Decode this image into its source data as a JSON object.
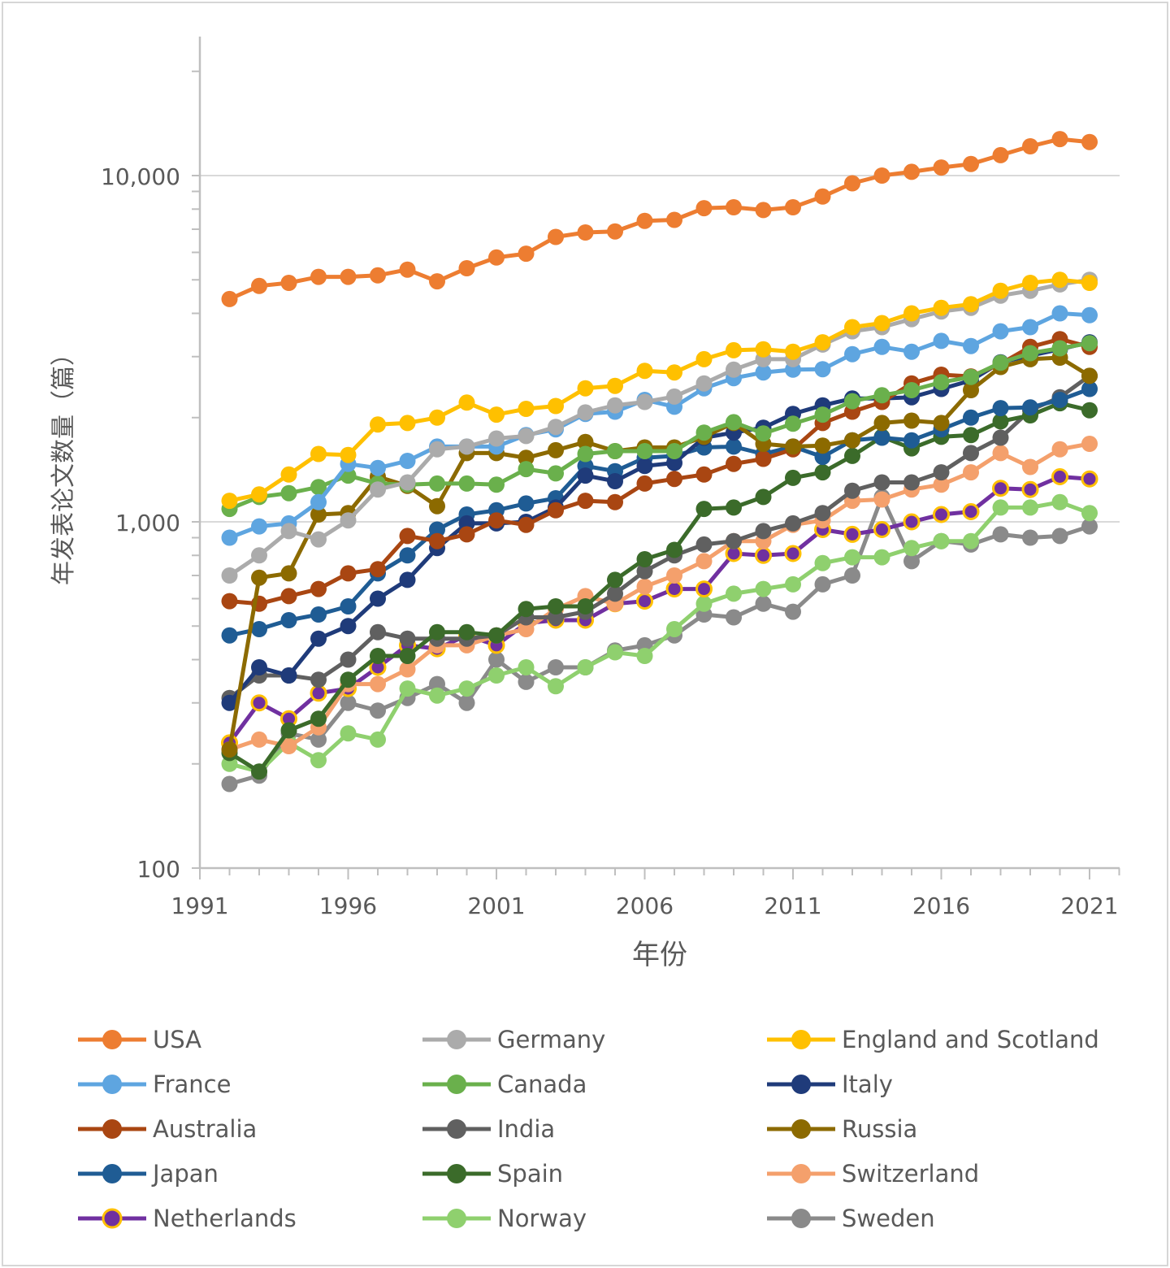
{
  "chart_data": {
    "type": "line",
    "xlabel": "年份",
    "ylabel": "年发表论文数量（篇）",
    "yscale": "log",
    "ylim": [
      100,
      20000
    ],
    "xlim": [
      1991,
      2022
    ],
    "x_ticks": [
      1991,
      1996,
      2001,
      2006,
      2011,
      2016,
      2021
    ],
    "y_ticks": [
      100,
      1000,
      10000
    ],
    "y_tick_labels": [
      "100",
      "1,000",
      "10,000"
    ],
    "grid": "horizontal major",
    "legend_position": "bottom",
    "x": [
      1992,
      1993,
      1994,
      1995,
      1996,
      1997,
      1998,
      1999,
      2000,
      2001,
      2002,
      2003,
      2004,
      2005,
      2006,
      2007,
      2008,
      2009,
      2010,
      2011,
      2012,
      2013,
      2014,
      2015,
      2016,
      2017,
      2018,
      2019,
      2020,
      2021
    ],
    "series": [
      {
        "name": "Sweden",
        "color": "#8a8a8a",
        "values": [
          175,
          185,
          245,
          235,
          300,
          285,
          310,
          340,
          300,
          400,
          345,
          380,
          380,
          425,
          440,
          470,
          540,
          530,
          580,
          550,
          660,
          700,
          1180,
          770,
          880,
          860,
          920,
          900,
          910,
          970
        ]
      },
      {
        "name": "Norway",
        "color": "#8fd06e",
        "values": [
          200,
          190,
          230,
          205,
          245,
          235,
          330,
          315,
          330,
          360,
          380,
          335,
          380,
          420,
          410,
          490,
          580,
          620,
          640,
          660,
          760,
          790,
          790,
          840,
          880,
          880,
          1100,
          1100,
          1140,
          1060
        ]
      },
      {
        "name": "Netherlands",
        "color": "#7030a0",
        "marker_edge": "#ffc000",
        "values": [
          230,
          300,
          270,
          320,
          330,
          380,
          440,
          430,
          470,
          440,
          510,
          520,
          520,
          580,
          590,
          640,
          640,
          810,
          800,
          810,
          950,
          920,
          950,
          1000,
          1050,
          1070,
          1250,
          1240,
          1350,
          1330
        ]
      },
      {
        "name": "Switzerland",
        "color": "#f4a06c",
        "values": [
          220,
          235,
          225,
          255,
          340,
          340,
          375,
          440,
          440,
          470,
          490,
          560,
          610,
          580,
          650,
          700,
          770,
          880,
          880,
          980,
          1010,
          1150,
          1160,
          1240,
          1280,
          1390,
          1580,
          1440,
          1620,
          1680
        ]
      },
      {
        "name": "India",
        "color": "#606060",
        "values": [
          310,
          360,
          360,
          350,
          400,
          480,
          460,
          460,
          460,
          470,
          530,
          530,
          550,
          620,
          720,
          800,
          860,
          880,
          940,
          990,
          1060,
          1230,
          1300,
          1300,
          1390,
          1580,
          1750,
          2100,
          2290,
          2640
        ]
      },
      {
        "name": "Spain",
        "color": "#3b6b2a",
        "values": [
          215,
          190,
          250,
          270,
          350,
          410,
          410,
          480,
          480,
          470,
          560,
          570,
          570,
          680,
          780,
          830,
          1090,
          1100,
          1180,
          1340,
          1390,
          1550,
          1760,
          1630,
          1760,
          1780,
          1950,
          2030,
          2200,
          2100
        ]
      },
      {
        "name": "Japan",
        "color": "#1f5c94",
        "values": [
          470,
          490,
          520,
          540,
          570,
          710,
          800,
          950,
          1050,
          1080,
          1130,
          1170,
          1450,
          1400,
          1530,
          1550,
          1640,
          1650,
          1570,
          1650,
          1540,
          1720,
          1750,
          1720,
          1850,
          2000,
          2130,
          2140,
          2250,
          2420
        ]
      },
      {
        "name": "Italy",
        "color": "#1f3b7a",
        "values": [
          300,
          380,
          360,
          460,
          500,
          600,
          680,
          840,
          990,
          990,
          1000,
          1100,
          1360,
          1310,
          1450,
          1480,
          1750,
          1810,
          1870,
          2050,
          2170,
          2270,
          2270,
          2290,
          2420,
          2560,
          2890,
          3020,
          3150,
          3300
        ]
      },
      {
        "name": "Australia",
        "color": "#a94612",
        "values": [
          590,
          580,
          610,
          640,
          710,
          730,
          910,
          880,
          920,
          1010,
          980,
          1080,
          1150,
          1140,
          1290,
          1330,
          1370,
          1470,
          1520,
          1620,
          1930,
          2080,
          2220,
          2510,
          2660,
          2630,
          2860,
          3200,
          3370,
          3200
        ]
      },
      {
        "name": "Russia",
        "color": "#8c6a00",
        "values": [
          220,
          690,
          710,
          1050,
          1060,
          1350,
          1270,
          1110,
          1580,
          1580,
          1530,
          1610,
          1700,
          1600,
          1640,
          1640,
          1760,
          1930,
          1680,
          1650,
          1660,
          1720,
          1930,
          1960,
          1930,
          2400,
          2800,
          2950,
          2980,
          2640
        ]
      },
      {
        "name": "Canada",
        "color": "#6ab04c",
        "values": [
          1090,
          1180,
          1210,
          1260,
          1360,
          1290,
          1280,
          1290,
          1290,
          1280,
          1420,
          1380,
          1570,
          1600,
          1600,
          1600,
          1810,
          1940,
          1800,
          1920,
          2040,
          2230,
          2320,
          2400,
          2530,
          2620,
          2880,
          3070,
          3170,
          3280
        ]
      },
      {
        "name": "France",
        "color": "#5ea5e0",
        "values": [
          900,
          970,
          990,
          1140,
          1470,
          1430,
          1500,
          1650,
          1650,
          1650,
          1780,
          1850,
          2050,
          2080,
          2250,
          2150,
          2430,
          2600,
          2700,
          2750,
          2760,
          3050,
          3200,
          3100,
          3330,
          3220,
          3550,
          3650,
          4000,
          3950
        ]
      },
      {
        "name": "Germany",
        "color": "#ababab",
        "values": [
          700,
          800,
          940,
          890,
          1010,
          1240,
          1300,
          1620,
          1650,
          1740,
          1770,
          1880,
          2070,
          2170,
          2220,
          2300,
          2510,
          2750,
          2950,
          2950,
          3250,
          3550,
          3650,
          3850,
          4050,
          4150,
          4500,
          4650,
          4850,
          5000
        ]
      },
      {
        "name": "England and Scotland",
        "color": "#ffc000",
        "values": [
          1150,
          1200,
          1370,
          1570,
          1560,
          1910,
          1930,
          2000,
          2210,
          2040,
          2120,
          2160,
          2430,
          2470,
          2730,
          2700,
          2950,
          3130,
          3150,
          3100,
          3300,
          3650,
          3750,
          4000,
          4150,
          4250,
          4650,
          4900,
          5000,
          4900
        ]
      },
      {
        "name": "USA",
        "color": "#ed7d31",
        "values": [
          4400,
          4800,
          4900,
          5100,
          5100,
          5150,
          5350,
          4950,
          5400,
          5800,
          5950,
          6650,
          6850,
          6900,
          7400,
          7450,
          8050,
          8100,
          7950,
          8100,
          8700,
          9500,
          10000,
          10250,
          10550,
          10800,
          11450,
          12150,
          12750,
          12500
        ]
      }
    ],
    "legend": [
      {
        "name": "USA",
        "color": "#ed7d31"
      },
      {
        "name": "Germany",
        "color": "#ababab"
      },
      {
        "name": "England and Scotland",
        "color": "#ffc000"
      },
      {
        "name": "France",
        "color": "#5ea5e0"
      },
      {
        "name": "Canada",
        "color": "#6ab04c"
      },
      {
        "name": "Italy",
        "color": "#1f3b7a"
      },
      {
        "name": "Australia",
        "color": "#a94612"
      },
      {
        "name": "India",
        "color": "#606060"
      },
      {
        "name": "Russia",
        "color": "#8c6a00"
      },
      {
        "name": "Japan",
        "color": "#1f5c94"
      },
      {
        "name": "Spain",
        "color": "#3b6b2a"
      },
      {
        "name": "Switzerland",
        "color": "#f4a06c"
      },
      {
        "name": "Netherlands",
        "color": "#7030a0",
        "marker_edge": "#ffc000"
      },
      {
        "name": "Norway",
        "color": "#8fd06e"
      },
      {
        "name": "Sweden",
        "color": "#8a8a8a"
      }
    ]
  }
}
